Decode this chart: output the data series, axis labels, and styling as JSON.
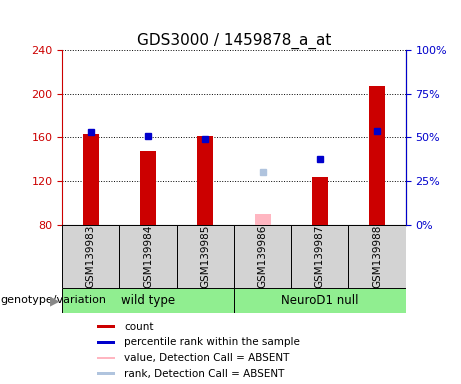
{
  "title": "GDS3000 / 1459878_a_at",
  "samples": [
    "GSM139983",
    "GSM139984",
    "GSM139985",
    "GSM139986",
    "GSM139987",
    "GSM139988"
  ],
  "count_values": [
    163,
    147,
    161,
    null,
    124,
    207
  ],
  "rank_values": [
    165,
    161,
    158,
    null,
    140,
    166
  ],
  "count_absent": [
    null,
    null,
    null,
    90,
    null,
    null
  ],
  "rank_absent": [
    null,
    null,
    null,
    128,
    null,
    null
  ],
  "ylim_left": [
    80,
    240
  ],
  "yticks_left": [
    80,
    120,
    160,
    200,
    240
  ],
  "yticks_right": [
    0,
    25,
    50,
    75,
    100
  ],
  "bar_bottom": 80,
  "count_color": "#CC0000",
  "rank_color": "#0000CC",
  "absent_count_color": "#FFB6C1",
  "absent_rank_color": "#B0C4DE",
  "left_axis_color": "#CC0000",
  "right_axis_color": "#0000CC",
  "title_fontsize": 11,
  "legend_items": [
    {
      "label": "count",
      "color": "#CC0000"
    },
    {
      "label": "percentile rank within the sample",
      "color": "#0000CC"
    },
    {
      "label": "value, Detection Call = ABSENT",
      "color": "#FFB6C1"
    },
    {
      "label": "rank, Detection Call = ABSENT",
      "color": "#B0C4DE"
    }
  ],
  "wt_color": "#90EE90",
  "nd_color": "#90EE90",
  "sample_box_color": "#D3D3D3"
}
